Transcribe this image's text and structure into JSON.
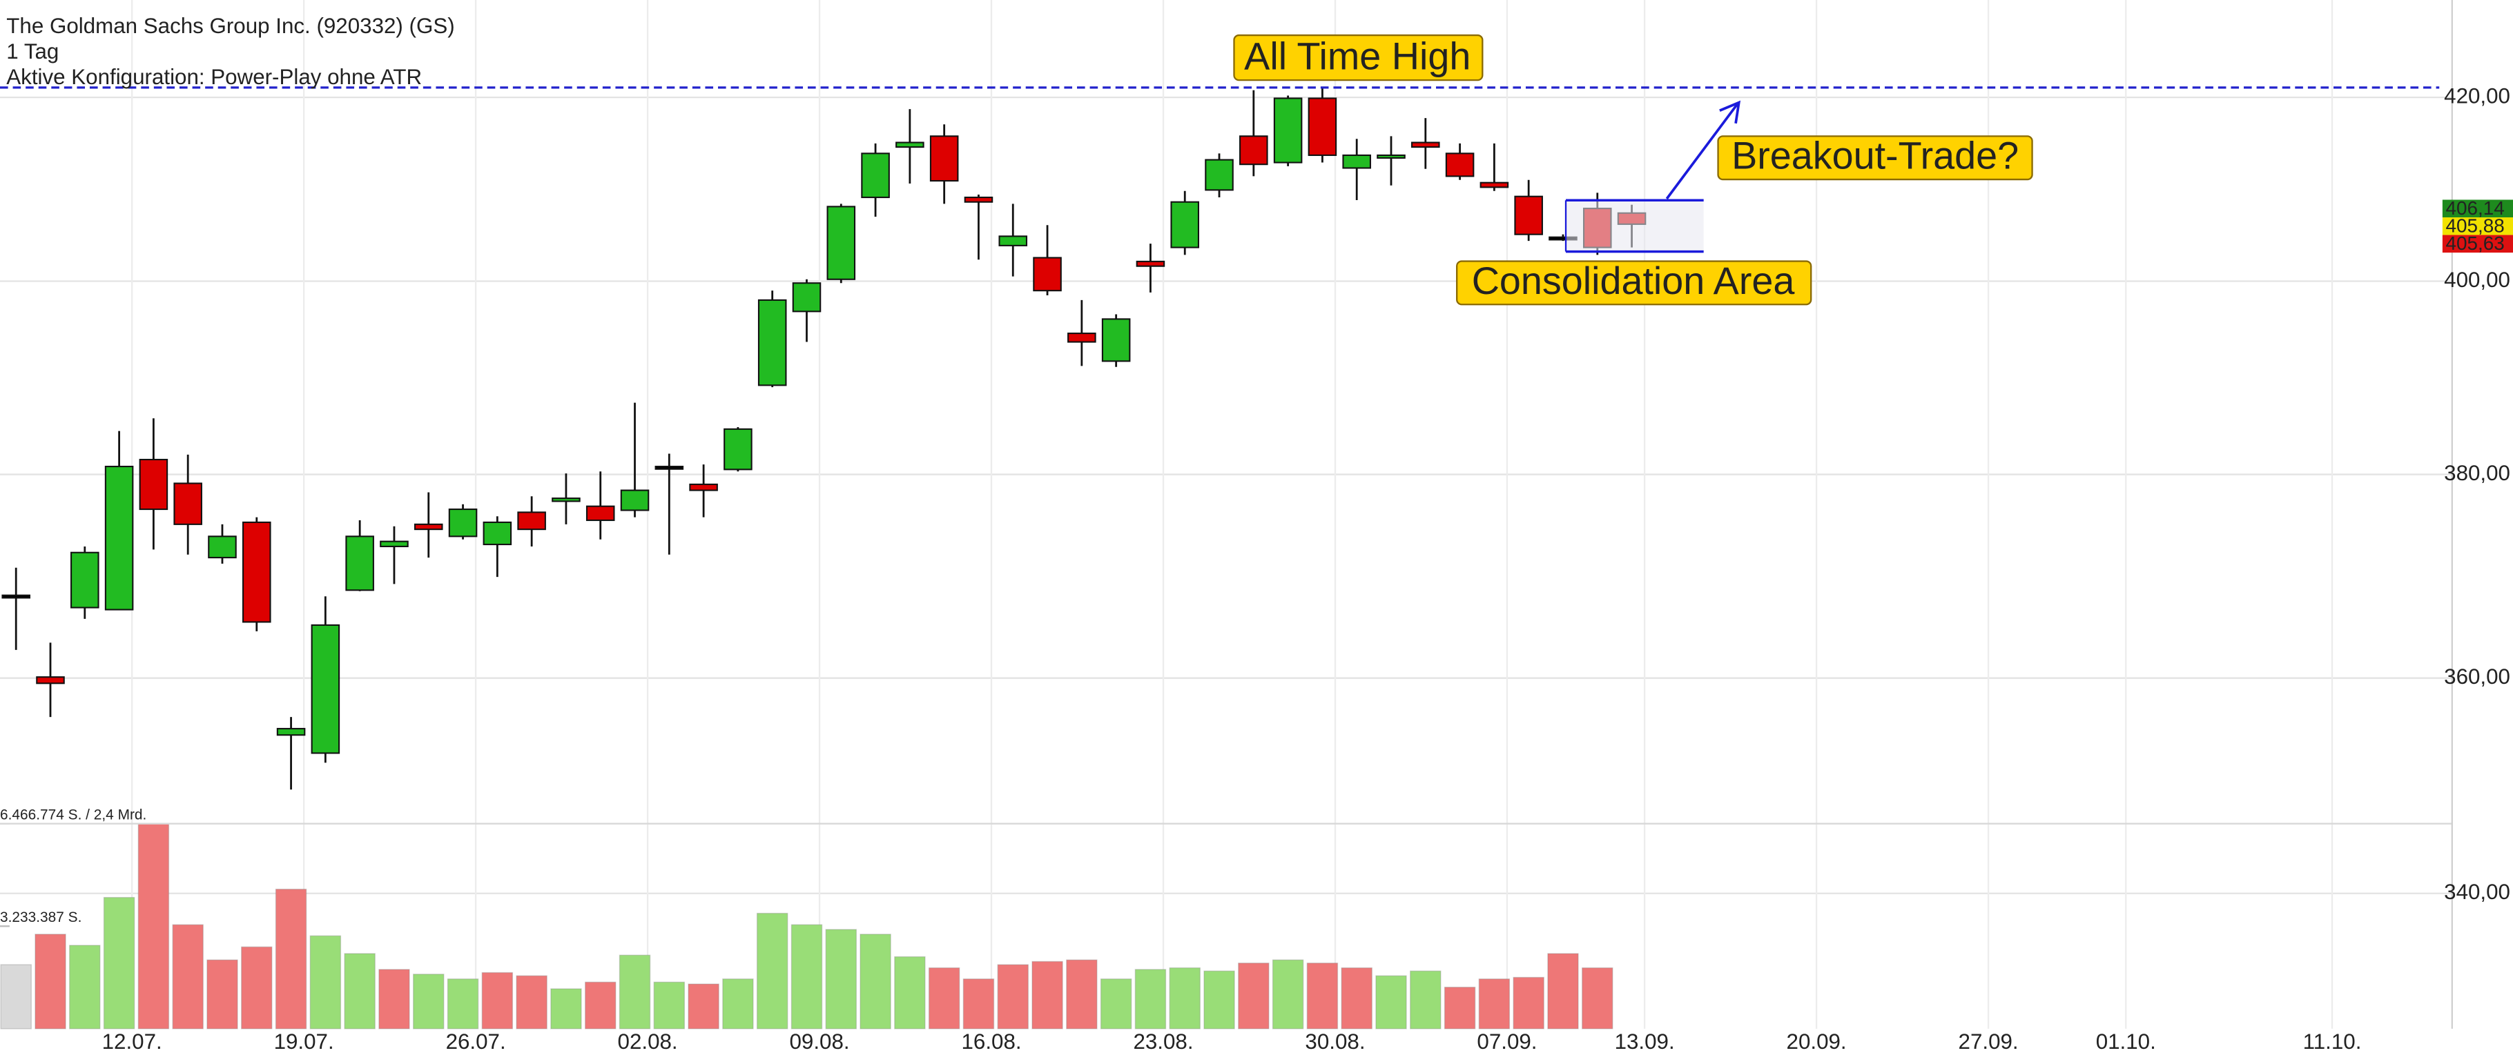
{
  "chart_data": {
    "type": "candlestick",
    "title": "The Goldman Sachs Group Inc. (920332) (GS)",
    "interval": "1 Tag",
    "configuration": "Aktive Konfiguration: Power-Play ohne ATR",
    "log_scale": true,
    "grid": true,
    "up_color": "#22bb22",
    "down_color": "#dd0000",
    "doji_color": "#000000",
    "categories": [
      null,
      null,
      null,
      "12.07.",
      null,
      null,
      null,
      null,
      "19.07.",
      null,
      null,
      null,
      null,
      "26.07.",
      null,
      null,
      null,
      null,
      "02.08.",
      null,
      null,
      null,
      null,
      "09.08.",
      null,
      null,
      null,
      null,
      "16.08.",
      null,
      null,
      null,
      null,
      "23.08.",
      null,
      null,
      null,
      null,
      "30.08.",
      null,
      null,
      null,
      null,
      "07.09.",
      null,
      null,
      null,
      "13.09.",
      null,
      null,
      null,
      null,
      "20.09.",
      null,
      null,
      null,
      null,
      "27.09.",
      null,
      null,
      null,
      "01.10.",
      null,
      null,
      null,
      null,
      null,
      "11.10.",
      null,
      null,
      null
    ],
    "open": [
      368.0,
      360.1,
      366.8,
      366.6,
      381.5,
      379.1,
      371.7,
      375.2,
      354.6,
      352.9,
      368.5,
      372.8,
      375.0,
      373.8,
      373.0,
      376.2,
      377.3,
      376.8,
      376.4,
      380.8,
      379.0,
      380.5,
      389.1,
      396.8,
      400.2,
      409.0,
      414.5,
      415.7,
      409.0,
      403.8,
      402.5,
      394.5,
      391.6,
      402.1,
      403.6,
      409.8,
      415.7,
      412.8,
      419.9,
      412.2,
      413.3,
      415.0,
      413.8,
      410.6,
      409.1,
      404.7,
      407.8,
      407.3,
      null,
      null,
      null,
      null,
      null,
      null,
      null,
      null,
      null,
      null,
      null,
      null,
      null,
      null,
      null,
      null,
      null,
      null,
      null,
      null,
      null,
      null,
      null
    ],
    "high": [
      370.7,
      363.4,
      372.8,
      384.4,
      385.7,
      382.0,
      375.0,
      375.7,
      356.3,
      367.9,
      375.4,
      374.8,
      378.2,
      377.0,
      375.8,
      377.8,
      380.1,
      380.3,
      387.3,
      382.1,
      381.0,
      384.8,
      399.0,
      400.2,
      408.3,
      414.9,
      418.7,
      417.0,
      409.3,
      408.3,
      406.0,
      398.0,
      396.5,
      404.0,
      409.7,
      413.8,
      420.8,
      420.2,
      421.1,
      415.4,
      415.7,
      417.7,
      414.9,
      414.9,
      410.9,
      405.0,
      409.5,
      408.2,
      null,
      null,
      null,
      null,
      null,
      null,
      null,
      null,
      null,
      null,
      null,
      null,
      null,
      null,
      null,
      null,
      null,
      null,
      null,
      null,
      null,
      null,
      null
    ],
    "low": [
      362.7,
      356.3,
      365.7,
      367.4,
      372.5,
      372.0,
      371.1,
      364.5,
      349.5,
      352.0,
      368.4,
      369.1,
      371.7,
      373.5,
      369.8,
      372.8,
      375.0,
      373.5,
      375.7,
      372.0,
      375.7,
      380.3,
      388.9,
      393.6,
      399.8,
      406.9,
      410.5,
      408.3,
      402.3,
      400.5,
      398.5,
      391.1,
      391.0,
      398.8,
      402.8,
      409.0,
      411.3,
      412.4,
      412.8,
      408.7,
      410.3,
      412.1,
      410.9,
      409.7,
      404.3,
      404.3,
      402.8,
      403.6,
      null,
      null,
      null,
      null,
      null,
      null,
      null,
      null,
      null,
      null,
      null,
      null,
      null,
      null,
      null,
      null,
      null,
      null,
      null,
      null,
      null,
      null,
      null
    ],
    "close": [
      368.0,
      359.5,
      372.2,
      380.8,
      376.5,
      375.0,
      373.8,
      365.4,
      355.2,
      365.1,
      373.8,
      373.3,
      374.5,
      376.5,
      375.2,
      374.5,
      377.6,
      375.4,
      378.4,
      380.8,
      378.4,
      384.6,
      398.0,
      399.8,
      408.0,
      413.8,
      415.0,
      410.8,
      408.5,
      404.8,
      399.0,
      393.6,
      396.0,
      401.6,
      408.5,
      413.1,
      412.6,
      419.9,
      413.6,
      413.6,
      413.6,
      414.5,
      411.3,
      410.1,
      405.0,
      404.7,
      403.6,
      406.1,
      null,
      null,
      null,
      null,
      null,
      null,
      null,
      null,
      null,
      null,
      null,
      null,
      null,
      null,
      null,
      null,
      null,
      null,
      null,
      null,
      null,
      null,
      null
    ],
    "ylim": [
      328,
      431
    ],
    "yticks": [
      {
        "value": 340,
        "label": "340,00"
      },
      {
        "value": 360,
        "label": "360,00"
      },
      {
        "value": 380,
        "label": "380,00"
      },
      {
        "value": 400,
        "label": "400,00"
      },
      {
        "value": 420,
        "label": "420,00"
      }
    ],
    "volume": {
      "values": [
        2020000,
        2980000,
        2630000,
        4140000,
        6466774,
        3280000,
        2170000,
        2580000,
        4400000,
        2930000,
        2370000,
        1870000,
        1720000,
        1570000,
        1770000,
        1670000,
        1260000,
        1470000,
        2320000,
        1470000,
        1410000,
        1570000,
        3640000,
        3280000,
        3130000,
        2980000,
        2270000,
        1920000,
        1570000,
        2020000,
        2120000,
        2170000,
        1570000,
        1870000,
        1920000,
        1820000,
        2070000,
        2170000,
        2070000,
        1920000,
        1670000,
        1820000,
        1310000,
        1570000,
        1620000,
        2370000,
        1920000,
        null,
        null,
        null,
        null,
        null,
        null,
        null,
        null,
        null,
        null,
        null,
        null,
        null,
        null,
        null,
        null,
        null,
        null,
        null,
        null,
        null,
        null,
        null,
        null
      ],
      "colors": [
        "#d9d9d9",
        "#ee7777",
        "#99dd77",
        "#99dd77",
        "#ee7777",
        "#ee7777",
        "#ee7777",
        "#ee7777",
        "#ee7777",
        "#99dd77",
        "#99dd77",
        "#ee7777",
        "#99dd77",
        "#99dd77",
        "#ee7777",
        "#ee7777",
        "#99dd77",
        "#ee7777",
        "#99dd77",
        "#99dd77",
        "#ee7777",
        "#99dd77",
        "#99dd77",
        "#99dd77",
        "#99dd77",
        "#99dd77",
        "#99dd77",
        "#ee7777",
        "#ee7777",
        "#ee7777",
        "#ee7777",
        "#ee7777",
        "#99dd77",
        "#99dd77",
        "#99dd77",
        "#99dd77",
        "#ee7777",
        "#99dd77",
        "#ee7777",
        "#ee7777",
        "#99dd77",
        "#99dd77",
        "#ee7777",
        "#ee7777",
        "#ee7777",
        "#ee7777",
        "#ee7777",
        null,
        null,
        null,
        null,
        null,
        null,
        null,
        null,
        null,
        null,
        null,
        null,
        null,
        null,
        null,
        null,
        null,
        null,
        null,
        null,
        null,
        null,
        null,
        null
      ],
      "ylim": [
        0,
        6466774
      ],
      "ticks": [
        {
          "value": 6466774,
          "label": "6.466.774 S. / 2,4 Mrd."
        },
        {
          "value": 3233387,
          "label": "3.233.387 S."
        }
      ]
    },
    "last_prices": [
      {
        "value": 406.14,
        "label": "406,14",
        "color": "#1e8a1e"
      },
      {
        "value": 405.88,
        "label": "405,88",
        "color": "#f2e200"
      },
      {
        "value": 405.63,
        "label": "405,63",
        "color": "#dd1111"
      }
    ],
    "reference_lines": [
      {
        "value": 421.1,
        "color": "#2222cc"
      }
    ],
    "annotations": [
      "All Time High",
      "Breakout-Trade?",
      "Consolidation Area"
    ]
  }
}
